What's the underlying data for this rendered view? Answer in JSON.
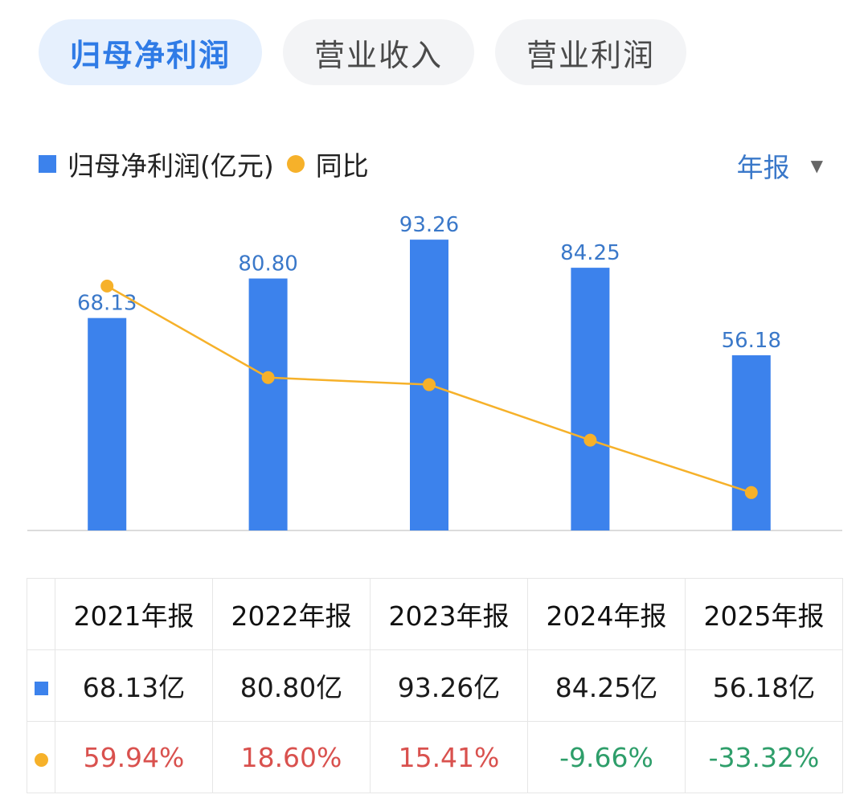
{
  "tabs": [
    {
      "label": "归母净利润",
      "active": true
    },
    {
      "label": "营业收入",
      "active": false
    },
    {
      "label": "营业利润",
      "active": false
    }
  ],
  "legend": {
    "bar_label": "归母净利润(亿元)",
    "line_label": "同比"
  },
  "period": {
    "label": "年报",
    "caret": "▼"
  },
  "colors": {
    "bar": "#3c82ec",
    "line": "#f6b12a",
    "positive": "#d9514e",
    "negative": "#2e9e6a",
    "label": "#3a78c9"
  },
  "chart_data": {
    "type": "bar",
    "title": "归母净利润",
    "categories": [
      "2021年报",
      "2022年报",
      "2023年报",
      "2024年报",
      "2025年报"
    ],
    "series": [
      {
        "name": "归母净利润(亿元)",
        "type": "bar",
        "values": [
          68.13,
          80.8,
          93.26,
          84.25,
          56.18
        ],
        "labels": [
          "68.13",
          "80.80",
          "93.26",
          "84.25",
          "56.18"
        ]
      },
      {
        "name": "同比",
        "type": "line",
        "values": [
          59.94,
          18.6,
          15.41,
          -9.66,
          -33.32
        ]
      }
    ],
    "ylim_bar": [
      0,
      100
    ],
    "ylim_line": [
      -80,
      80
    ]
  },
  "table": {
    "headers": [
      "2021年报",
      "2022年报",
      "2023年报",
      "2024年报",
      "2025年报"
    ],
    "profit_row": [
      "68.13亿",
      "80.80亿",
      "93.26亿",
      "84.25亿",
      "56.18亿"
    ],
    "yoy_row": [
      "59.94%",
      "18.60%",
      "15.41%",
      "-9.66%",
      "-33.32%"
    ]
  }
}
